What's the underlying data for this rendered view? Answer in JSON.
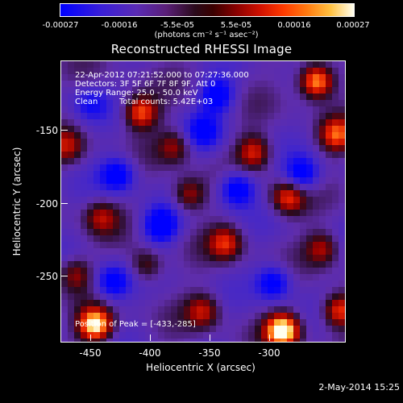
{
  "colorbar": {
    "tick_labels": [
      "-0.00027",
      "-0.00016",
      "-5.5e-05",
      "5.5e-05",
      "0.00016",
      "0.00027"
    ],
    "units": "(photons cm⁻² s⁻¹ asec⁻²)"
  },
  "title": "Reconstructed RHESSI Image",
  "info": {
    "time_range": "22-Apr-2012 07:21:52.000 to 07:27:36.000",
    "detectors": "Detectors: 3F 5F 6F 7F 8F 9F, Att 0",
    "energy": "Energy Range: 25.0 - 50.0 keV",
    "method": "Clean",
    "counts": "Total counts: 5.42E+03",
    "peak": "Position of Peak = [-433,-285]"
  },
  "axes": {
    "xlabel": "Heliocentric X (arcsec)",
    "ylabel": "Heliocentric Y (arcsec)",
    "x_ticks": [
      "-450",
      "-400",
      "-350",
      "-300"
    ],
    "y_ticks": [
      "-150",
      "-200",
      "-250"
    ]
  },
  "datestamp": "2-May-2014 15:25",
  "chart_data": {
    "type": "heatmap",
    "title": "Reconstructed RHESSI Image",
    "xlabel": "Heliocentric X (arcsec)",
    "ylabel": "Heliocentric Y (arcsec)",
    "xlim": [
      -462,
      -272
    ],
    "ylim": [
      -293,
      -104
    ],
    "x_ticks": [
      -450,
      -400,
      -350,
      -300
    ],
    "y_ticks": [
      -150,
      -200,
      -250
    ],
    "colorbar_range": [
      -0.00027,
      0.00027
    ],
    "colorbar_ticks": [
      -0.00027,
      -0.00016,
      -5.5e-05,
      5.5e-05,
      0.00016,
      0.00027
    ],
    "peak_position": [
      -433,
      -285
    ],
    "colormap": [
      "#0000ff",
      "#5a2bb4",
      "#2a0a1a",
      "#8a0000",
      "#ff3a00",
      "#ffc040",
      "#fffff0"
    ]
  }
}
